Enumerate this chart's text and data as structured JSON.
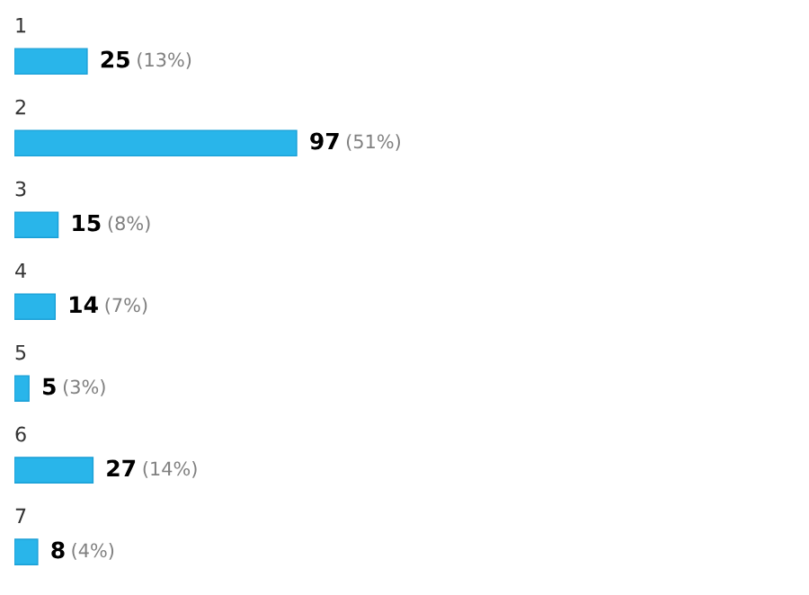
{
  "chart_data": {
    "type": "bar",
    "orientation": "horizontal",
    "categories": [
      "1",
      "2",
      "3",
      "4",
      "5",
      "6",
      "7"
    ],
    "values": [
      25,
      97,
      15,
      14,
      5,
      27,
      8
    ],
    "color": "#29b5ea",
    "data_labels": true,
    "annotations": [
      {
        "text": "(13%)",
        "x": 25,
        "y": "1"
      },
      {
        "text": "(51%)",
        "x": 97,
        "y": "2"
      },
      {
        "text": "(8%)",
        "x": 15,
        "y": "3"
      },
      {
        "text": "(7%)",
        "x": 14,
        "y": "4"
      },
      {
        "text": "(3%)",
        "x": 5,
        "y": "5"
      },
      {
        "text": "(14%)",
        "x": 27,
        "y": "6"
      },
      {
        "text": "(4%)",
        "x": 8,
        "y": "7"
      }
    ]
  }
}
